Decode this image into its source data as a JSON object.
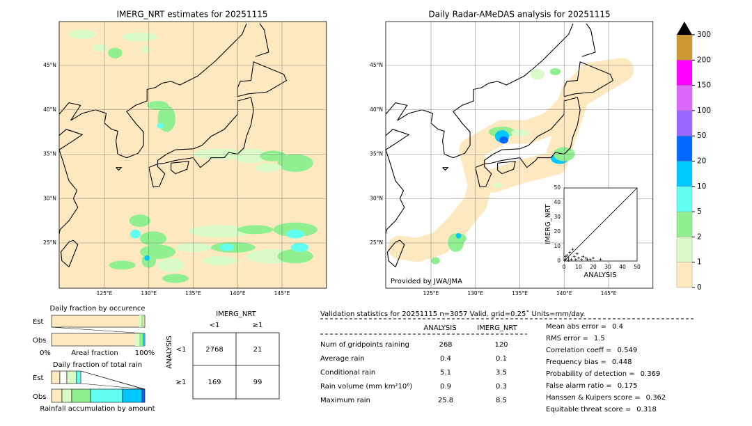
{
  "left_map": {
    "title": "IMERG_NRT estimates for 20251115",
    "lat_labels": [
      "45°N",
      "40°N",
      "35°N",
      "30°N",
      "25°N"
    ],
    "lon_labels": [
      "125°E",
      "130°E",
      "135°E",
      "140°E",
      "145°E"
    ]
  },
  "right_map": {
    "title": "Daily Radar-AMeDAS analysis for 20251115",
    "lat_labels": [
      "45°N",
      "40°N",
      "35°N",
      "30°N",
      "25°N"
    ],
    "lon_labels": [
      "125°E",
      "130°E",
      "135°E",
      "140°E",
      "145°E"
    ],
    "credit": "Provided by JWA/JMA"
  },
  "scatter": {
    "x_label": "ANALYSIS",
    "y_label": "IMERG_NRT",
    "lim": [
      0,
      50
    ],
    "ticks": [
      0,
      10,
      20,
      30,
      40,
      50
    ]
  },
  "colorbar": {
    "ticks": [
      0,
      1,
      2,
      5,
      10,
      20,
      50,
      100,
      150,
      200,
      300
    ],
    "colors": [
      "#fde8c0",
      "#d8fbc8",
      "#90f090",
      "#60fff0",
      "#00c8ff",
      "#0068ff",
      "#9966ff",
      "#dd66ff",
      "#ff00ff",
      "#cc9933"
    ]
  },
  "occurrence": {
    "title": "Daily fraction by occurence",
    "rows": [
      "Est",
      "Obs"
    ],
    "axis_start": "0%",
    "axis_label": "Areal fraction",
    "axis_end": "100%"
  },
  "total_rain": {
    "title": "Daily fraction of total rain",
    "rows": [
      "Est",
      "Obs"
    ],
    "footer": "Rainfall accumulation by amount"
  },
  "contingency": {
    "col_header": "IMERG_NRT",
    "cols": [
      "<1",
      "≥1"
    ],
    "row_header": "ANALYSIS",
    "rows": [
      "<1",
      "≥1"
    ],
    "cells": [
      [
        2768,
        21
      ],
      [
        169,
        99
      ]
    ]
  },
  "validation": {
    "header": "Validation statistics for 20251115  n=3057 Valid. grid=0.25˚ Units=mm/day.",
    "columns": [
      "ANALYSIS",
      "IMERG_NRT"
    ],
    "rows": [
      {
        "label": "Num of gridpoints raining",
        "analysis": 268,
        "imerg": 120
      },
      {
        "label": "Average rain",
        "analysis": 0.4,
        "imerg": 0.1
      },
      {
        "label": "Conditional rain",
        "analysis": 5.1,
        "imerg": 3.5
      },
      {
        "label": "Rain volume (mm km²10⁶)",
        "analysis": 0.9,
        "imerg": 0.3
      },
      {
        "label": "Maximum rain",
        "analysis": 25.8,
        "imerg": 8.5
      }
    ],
    "scores": [
      {
        "label": "Mean abs error =",
        "value": 0.4
      },
      {
        "label": "RMS error =",
        "value": 1.5
      },
      {
        "label": "Correlation coeff =",
        "value": 0.549
      },
      {
        "label": "Frequency bias =",
        "value": 0.448
      },
      {
        "label": "Probability of detection =",
        "value": 0.369
      },
      {
        "label": "False alarm ratio =",
        "value": 0.175
      },
      {
        "label": "Hanssen & Kuipers score =",
        "value": 0.362
      },
      {
        "label": "Equitable threat score =",
        "value": 0.318
      }
    ]
  }
}
